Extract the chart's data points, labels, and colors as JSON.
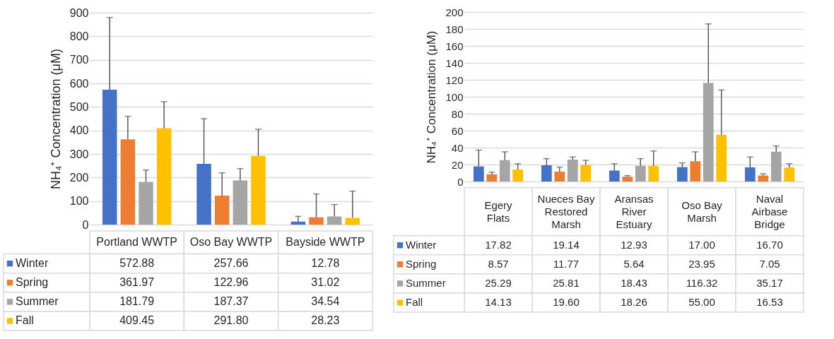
{
  "chart_data": [
    {
      "type": "bar",
      "ylabel": "NH₄⁺ Concentration (μM)",
      "categories": [
        "Portland WWTP",
        "Oso Bay WWTP",
        "Bayside WWTP"
      ],
      "ylim": [
        0,
        900
      ],
      "yticks": [
        0,
        100,
        200,
        300,
        400,
        500,
        600,
        700,
        800,
        900
      ],
      "grid": "y",
      "legend": "bottom left",
      "series": [
        {
          "name": "Winter",
          "color": "#4472c4",
          "values": [
            572.88,
            257.66,
            12.78
          ],
          "errors": [
            [
              572.88,
              880
            ],
            [
              257.66,
              450
            ],
            [
              12.78,
              35
            ]
          ],
          "value_labels": [
            "572.88",
            "257.66",
            "12.78"
          ]
        },
        {
          "name": "Spring",
          "color": "#ed7d31",
          "values": [
            361.97,
            122.96,
            31.02
          ],
          "errors": [
            [
              361.97,
              460
            ],
            [
              122.96,
              220
            ],
            [
              31.02,
              130
            ]
          ],
          "value_labels": [
            "361.97",
            "122.96",
            "31.02"
          ]
        },
        {
          "name": "Summer",
          "color": "#a5a5a5",
          "values": [
            181.79,
            187.37,
            34.54
          ],
          "errors": [
            [
              181.79,
              232
            ],
            [
              187.37,
              238
            ],
            [
              34.54,
              85
            ]
          ],
          "value_labels": [
            "181.79",
            "187.37",
            "34.54"
          ]
        },
        {
          "name": "Fall",
          "color": "#ffc000",
          "values": [
            409.45,
            291.8,
            28.23
          ],
          "errors": [
            [
              409.45,
              522
            ],
            [
              291.8,
              405
            ],
            [
              28.23,
              142
            ]
          ],
          "value_labels": [
            "409.45",
            "291.80",
            "28.23"
          ]
        }
      ]
    },
    {
      "type": "bar",
      "ylabel": "NH₄⁺ Concentration (μM)",
      "categories": [
        "Egery Flats",
        "Nueces Bay Restored Marsh",
        "Aransas River Estuary",
        "Oso Bay Marsh",
        "Naval Airbase Bridge"
      ],
      "ylim": [
        0,
        200
      ],
      "yticks": [
        0,
        20,
        40,
        60,
        80,
        100,
        120,
        140,
        160,
        180,
        200
      ],
      "grid": "y",
      "legend": "bottom left",
      "series": [
        {
          "name": "Winter",
          "color": "#4472c4",
          "values": [
            17.82,
            19.14,
            12.93,
            17.0,
            16.7
          ],
          "errors": [
            [
              17.82,
              37
            ],
            [
              19.14,
              27
            ],
            [
              12.93,
              21
            ],
            [
              17.0,
              22
            ],
            [
              16.7,
              29
            ]
          ],
          "value_labels": [
            "17.82",
            "19.14",
            "12.93",
            "17.00",
            "16.70"
          ]
        },
        {
          "name": "Spring",
          "color": "#ed7d31",
          "values": [
            8.57,
            11.77,
            5.64,
            23.95,
            7.05
          ],
          "errors": [
            [
              8.57,
              11
            ],
            [
              11.77,
              17
            ],
            [
              5.64,
              7
            ],
            [
              23.95,
              35
            ],
            [
              7.05,
              9
            ]
          ],
          "value_labels": [
            "8.57",
            "11.77",
            "5.64",
            "23.95",
            "7.05"
          ]
        },
        {
          "name": "Summer",
          "color": "#a5a5a5",
          "values": [
            25.29,
            25.81,
            18.43,
            116.32,
            35.17
          ],
          "errors": [
            [
              25.29,
              35
            ],
            [
              25.81,
              29
            ],
            [
              18.43,
              27
            ],
            [
              116.32,
              186
            ],
            [
              35.17,
              42
            ]
          ],
          "value_labels": [
            "25.29",
            "25.81",
            "18.43",
            "116.32",
            "35.17"
          ]
        },
        {
          "name": "Fall",
          "color": "#ffc000",
          "values": [
            14.13,
            19.6,
            18.26,
            55.0,
            16.53
          ],
          "errors": [
            [
              14.13,
              21
            ],
            [
              19.6,
              25
            ],
            [
              18.26,
              36
            ],
            [
              55.0,
              108
            ],
            [
              16.53,
              21
            ]
          ],
          "value_labels": [
            "14.13",
            "19.60",
            "18.26",
            "55.00",
            "16.53"
          ]
        }
      ]
    }
  ]
}
